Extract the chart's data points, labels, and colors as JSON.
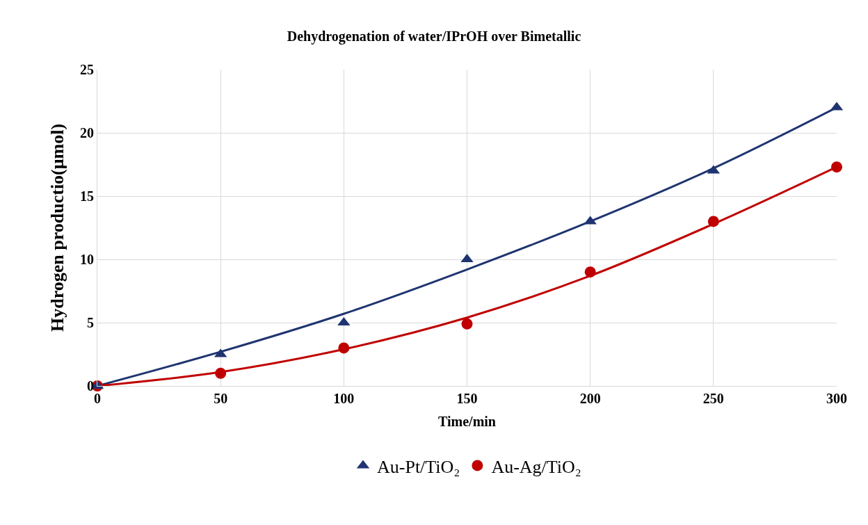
{
  "chart_data": {
    "type": "scatter",
    "title": "Dehydrogenation of water/IPrOH over Bimetallic",
    "xlabel": "Time/min",
    "ylabel": "Hydrogen productio(μmol)",
    "series": [
      {
        "name": "Au-Pt/TiO₂",
        "color": "#1f3470",
        "marker": "triangle",
        "x": [
          0,
          50,
          100,
          150,
          200,
          250,
          300
        ],
        "values": [
          0,
          2.5,
          5,
          10,
          13,
          17,
          22
        ]
      },
      {
        "name": "Au-Ag/TiO₂",
        "color": "#c00000",
        "marker": "circle",
        "x": [
          0,
          50,
          100,
          150,
          200,
          250,
          300
        ],
        "values": [
          0,
          1,
          3,
          4.9,
          9,
          13,
          17.3
        ]
      },
      {
        "type": "line",
        "color": "#1f3470",
        "marker": "none",
        "x": [
          0,
          50,
          100,
          150,
          200,
          250,
          300
        ],
        "values": [
          0,
          2.7,
          5.7,
          9.2,
          13,
          17.2,
          22
        ]
      },
      {
        "type": "line",
        "color": "#c00000",
        "marker": "none",
        "x": [
          0,
          50,
          100,
          150,
          200,
          250,
          300
        ],
        "values": [
          0,
          1.1,
          2.9,
          5.4,
          8.7,
          12.8,
          17.3
        ]
      }
    ],
    "xlim": [
      0,
      300
    ],
    "xticks": [
      0,
      50,
      100,
      150,
      200,
      250,
      300
    ],
    "ylim": [
      0,
      25
    ],
    "yticks": [
      0,
      5,
      10,
      15,
      20,
      25
    ],
    "grid": true,
    "legend": "bottom"
  }
}
